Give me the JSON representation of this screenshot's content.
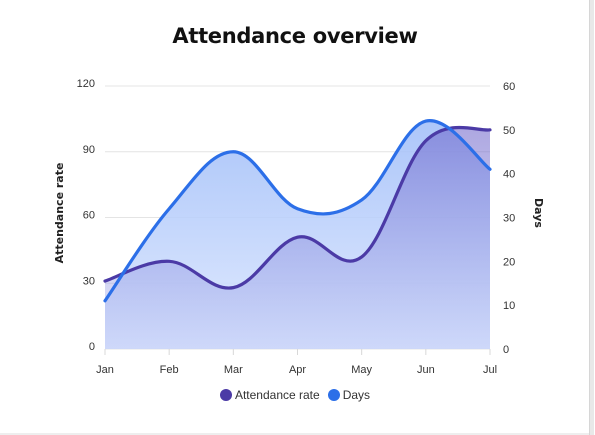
{
  "chart_data": {
    "type": "area",
    "title": "Attendance overview",
    "categories": [
      "Jan",
      "Feb",
      "Mar",
      "Apr",
      "May",
      "Jun",
      "Jul"
    ],
    "y_left": {
      "label": "Attendance rate",
      "lim": [
        0,
        120
      ],
      "ticks": [
        0,
        30,
        60,
        90,
        120
      ]
    },
    "y_right": {
      "label": "Days",
      "lim": [
        0,
        60
      ],
      "ticks": [
        0,
        10,
        20,
        30,
        40,
        50,
        60
      ]
    },
    "series": [
      {
        "name": "Attendance rate",
        "axis": "left",
        "color": "#4b3aa6",
        "values": [
          31,
          40,
          28,
          51,
          42,
          95,
          100
        ]
      },
      {
        "name": "Days",
        "axis": "right",
        "color": "#2c6fe8",
        "values": [
          11,
          32,
          45,
          32,
          34,
          52,
          41
        ]
      }
    ],
    "grid": true,
    "smooth": true,
    "legend_position": "bottom"
  }
}
